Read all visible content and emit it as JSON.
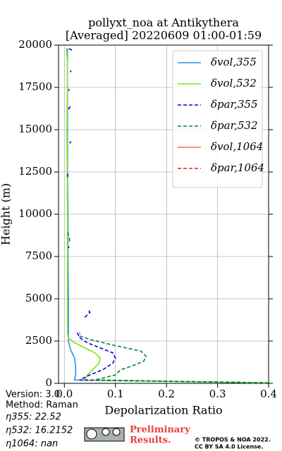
{
  "chart_data": {
    "type": "line",
    "title": [
      "pollyxt_noa at Antikythera",
      "[Averaged] 20220609 01:00-01:59"
    ],
    "x_label": "Depolarization Ratio",
    "y_label": "Height (m)",
    "xlim": [
      -0.0115,
      0.4
    ],
    "ylim": [
      0,
      20000
    ],
    "xticks": [
      {
        "value": 0,
        "label": "0.0"
      },
      0.1,
      0.2,
      0.3,
      0.4
    ],
    "yticks": [
      0,
      2500,
      5000,
      7500,
      10000,
      12500,
      15000,
      17500,
      20000
    ],
    "grid": true,
    "legend": "upper right",
    "series": [
      {
        "name": "δvol,355",
        "color": "#2f8fe0",
        "linestyle": "solid",
        "x": [
          0.4,
          0.02,
          0.022,
          0.022,
          0.02,
          0.012,
          0.008,
          0.008,
          0.008,
          0.008,
          0.007,
          0.007,
          0.006,
          0.006,
          0.006,
          0.006
        ],
        "y": [
          30,
          200,
          500,
          1000,
          1500,
          2000,
          2500,
          3000,
          4000,
          5000,
          7500,
          10000,
          12500,
          15000,
          17500,
          19800
        ]
      },
      {
        "name": "δvol,532",
        "color": "#7ae81c",
        "linestyle": "solid",
        "x": [
          0.4,
          0.04,
          0.045,
          0.055,
          0.068,
          0.07,
          0.06,
          0.04,
          0.02,
          0.008,
          0.006,
          0.006,
          0.006,
          0.005,
          0.006,
          0.006,
          0.004
        ],
        "y": [
          30,
          200,
          500,
          800,
          1200,
          1500,
          1800,
          2100,
          2400,
          2700,
          3000,
          5000,
          10000,
          15000,
          17500,
          19000,
          19800
        ]
      },
      {
        "name": "δpar,355",
        "color": "#0000cc",
        "linestyle": "dashed",
        "x": [
          0.4,
          0.03,
          0.05,
          0.075,
          0.095,
          0.1,
          0.095,
          0.07,
          0.045,
          0.03,
          0.025,
          null,
          0.04,
          0.05,
          0.048,
          null,
          0.008,
          0.009,
          null,
          0.006,
          0.007,
          null,
          0.01,
          0.013,
          null,
          0.008,
          0.012,
          null,
          0.008,
          0.01,
          null,
          0.012,
          0.013,
          null,
          0.015,
          0.008
        ],
        "y": [
          30,
          200,
          500,
          800,
          1200,
          1500,
          1800,
          2100,
          2400,
          2700,
          3000,
          null,
          3900,
          4200,
          4300,
          null,
          8000,
          8100,
          null,
          12200,
          12400,
          null,
          14200,
          14300,
          null,
          16200,
          16400,
          null,
          17300,
          17400,
          null,
          18400,
          18500,
          null,
          19700,
          19800
        ]
      },
      {
        "name": "δpar,532",
        "color": "#008040",
        "linestyle": "dashed",
        "x": [
          0.4,
          0.06,
          0.1,
          0.11,
          0.13,
          0.155,
          0.16,
          0.15,
          0.12,
          0.09,
          0.05,
          0.03,
          0.03,
          null,
          0.01,
          0.01,
          0.006
        ],
        "y": [
          30,
          200,
          500,
          800,
          1000,
          1300,
          1600,
          1900,
          2100,
          2300,
          2600,
          2800,
          3000,
          null,
          8400,
          8600,
          9000
        ]
      },
      {
        "name": "δvol,1064",
        "color": "#ff6a4d",
        "linestyle": "solid",
        "x": [],
        "y": []
      },
      {
        "name": "δpar,1064",
        "color": "#d62020",
        "linestyle": "dashed",
        "x": [],
        "y": []
      }
    ]
  },
  "notes": {
    "version": "Version: 3.0",
    "method": "Method: Raman",
    "eta355": "η355:  22.52",
    "eta532": "η532: 16.2152",
    "eta1064": "η1064:    nan",
    "preliminary": [
      "Preliminary",
      "Results."
    ],
    "copyright": [
      "© TROPOS & NOA 2022.",
      "CC BY SA 4.0 License."
    ]
  }
}
